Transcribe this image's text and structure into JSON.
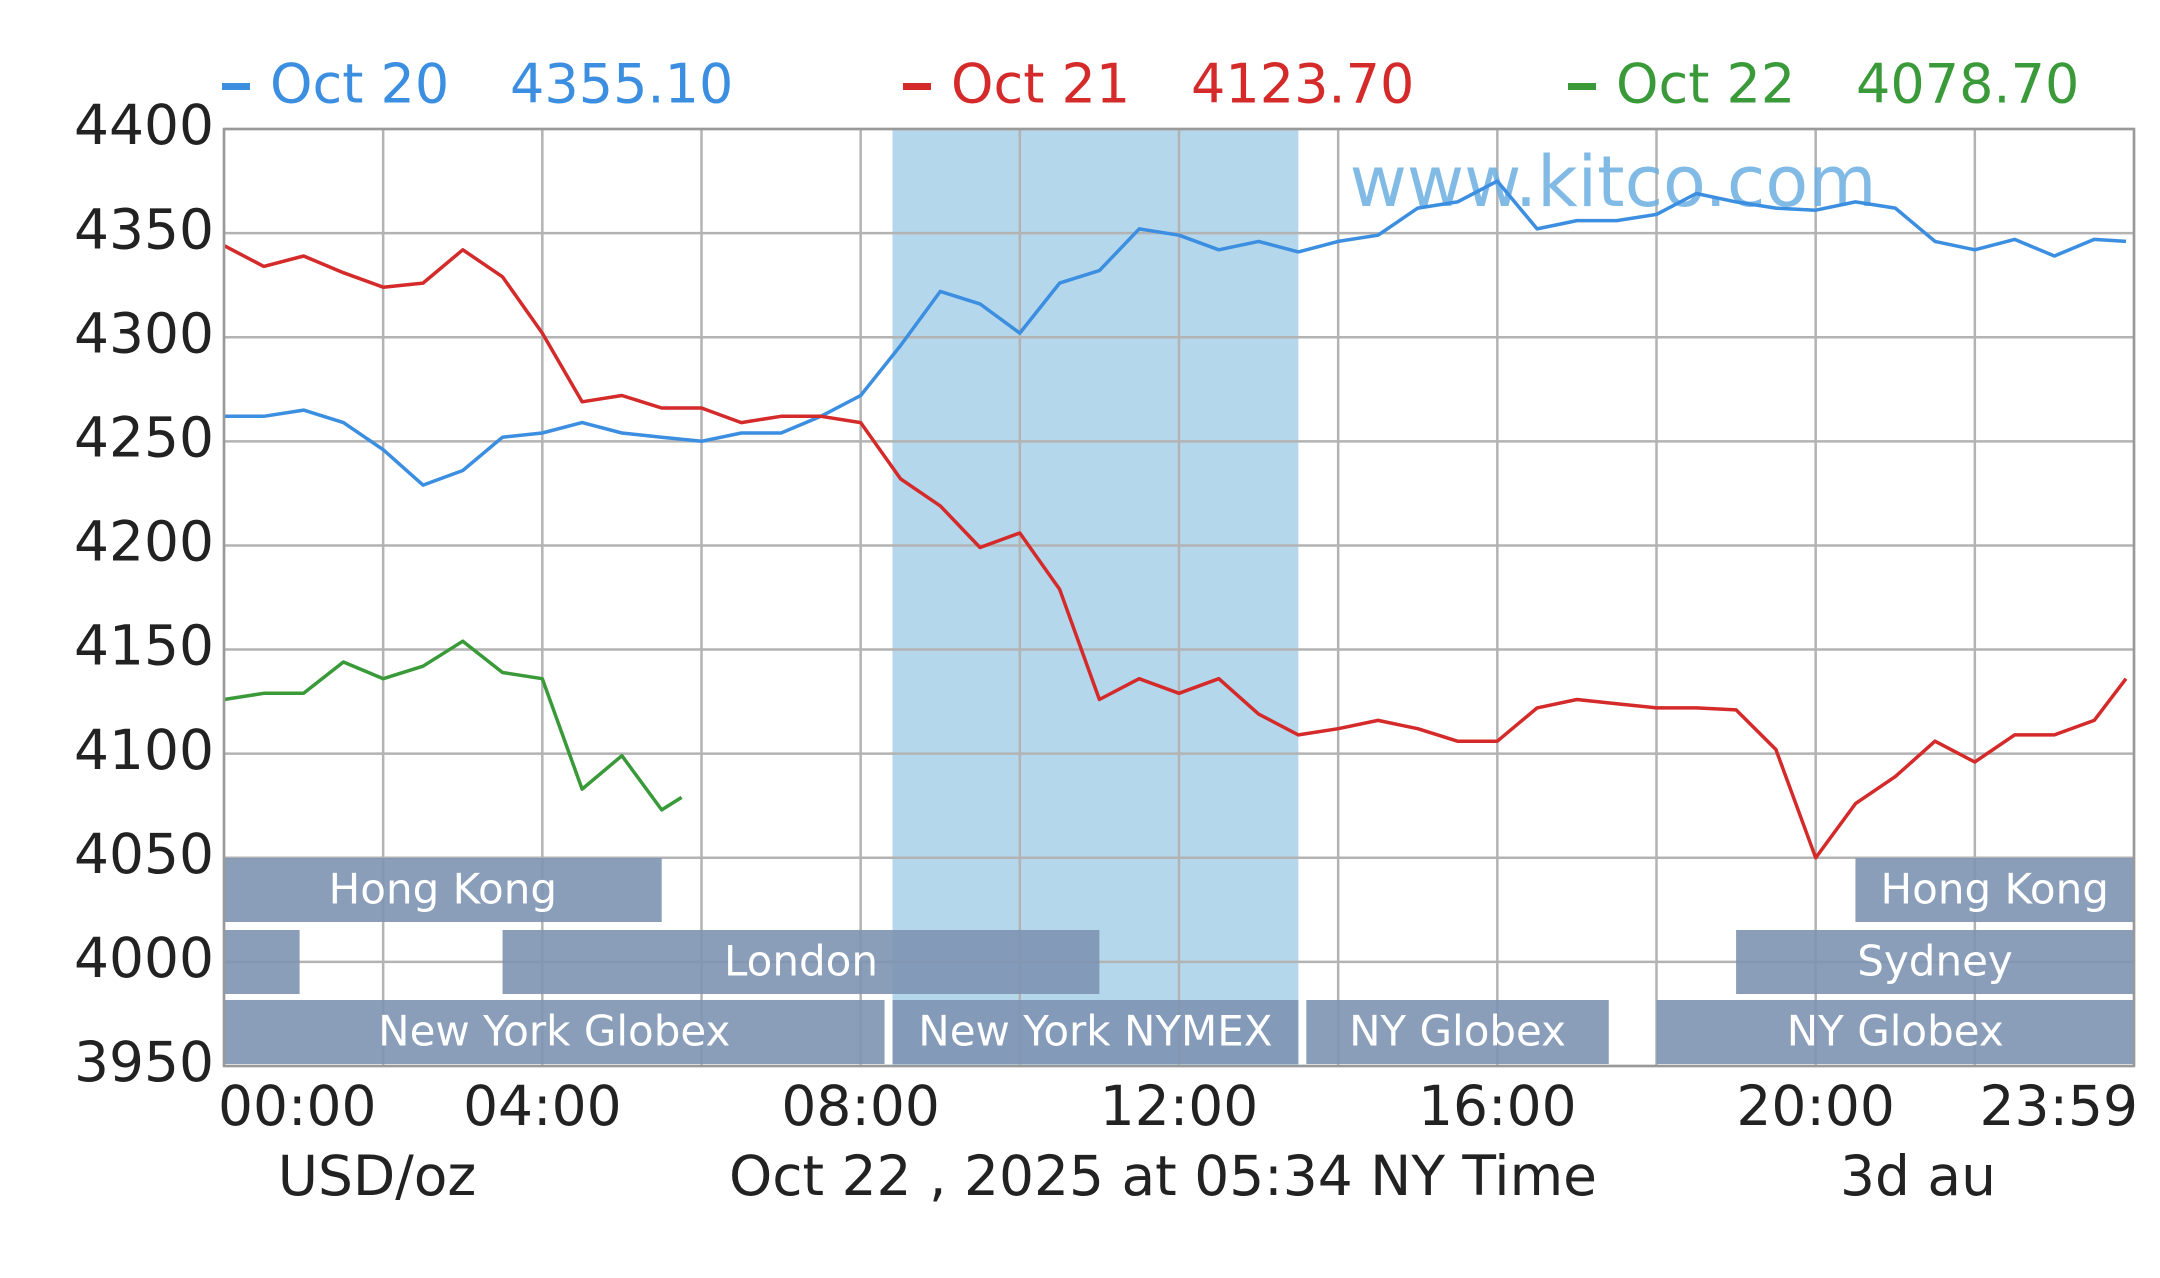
{
  "chart_data": {
    "type": "line",
    "watermark": "www.kitco.com",
    "y_unit": "USD/oz",
    "timestamp": "Oct 22 , 2025 at 05:34 NY Time",
    "footer_note": "3d au",
    "xlim": [
      0,
      24
    ],
    "xticks": [
      {
        "value": 0,
        "label": "00:00"
      },
      {
        "value": 4,
        "label": "04:00"
      },
      {
        "value": 8,
        "label": "08:00"
      },
      {
        "value": 12,
        "label": "12:00"
      },
      {
        "value": 16,
        "label": "16:00"
      },
      {
        "value": 20,
        "label": "20:00"
      },
      {
        "value": 24,
        "label": "23:59"
      }
    ],
    "xgrid_extra": [
      2,
      6,
      10,
      14,
      18,
      22
    ],
    "ylim": [
      3950,
      4400
    ],
    "yticks": [
      3950,
      4000,
      4050,
      4100,
      4150,
      4200,
      4250,
      4300,
      4350,
      4400
    ],
    "grid": true,
    "highlight": [
      8.4,
      13.5
    ],
    "sessions": [
      {
        "label": "Hong Kong",
        "row": 0,
        "start": 0,
        "end": 5.5
      },
      {
        "label": "Hong Kong",
        "row": 0,
        "start": 20.5,
        "end": 24
      },
      {
        "label": null,
        "row": 1,
        "start": 0,
        "end": 0.95
      },
      {
        "label": "London",
        "row": 1,
        "start": 3.5,
        "end": 11
      },
      {
        "label": "Sydney",
        "row": 1,
        "start": 19,
        "end": 24
      },
      {
        "label": "New York Globex",
        "row": 2,
        "start": 0,
        "end": 8.3
      },
      {
        "label": "New York NYMEX",
        "row": 2,
        "start": 8.4,
        "end": 13.5
      },
      {
        "label": "NY Globex",
        "row": 2,
        "start": 13.6,
        "end": 17.4
      },
      {
        "label": "NY Globex",
        "row": 2,
        "start": 18,
        "end": 24
      }
    ],
    "series": [
      {
        "name": "Oct 20",
        "value_label": "4355.10",
        "color": "#3b8ee0",
        "x": [
          0,
          0.5,
          1,
          1.5,
          2,
          2.5,
          3,
          3.5,
          4,
          4.5,
          5,
          5.5,
          6,
          6.5,
          7,
          7.5,
          8,
          8.5,
          9,
          9.5,
          10,
          10.5,
          11,
          11.5,
          12,
          12.5,
          13,
          13.5,
          14,
          14.5,
          15,
          15.5,
          16,
          16.5,
          17,
          17.5,
          18,
          18.5,
          19,
          19.5,
          20,
          20.5,
          21,
          21.5,
          22,
          22.5,
          23,
          23.5,
          23.9
        ],
        "values": [
          4262,
          4262,
          4265,
          4259,
          4246,
          4229,
          4236,
          4252,
          4254,
          4259,
          4254,
          4252,
          4250,
          4254,
          4254,
          4262,
          4272,
          4296,
          4322,
          4316,
          4302,
          4326,
          4332,
          4352,
          4349,
          4342,
          4346,
          4341,
          4346,
          4349,
          4362,
          4365,
          4375,
          4352,
          4356,
          4356,
          4359,
          4369,
          4365,
          4362,
          4361,
          4365,
          4362,
          4346,
          4342,
          4347,
          4339,
          4347,
          4346
        ]
      },
      {
        "name": "Oct 21",
        "value_label": "4123.70",
        "color": "#d42a2a",
        "x": [
          0,
          0.5,
          1,
          1.5,
          2,
          2.5,
          3,
          3.5,
          4,
          4.5,
          5,
          5.5,
          6,
          6.5,
          7,
          7.5,
          8,
          8.5,
          9,
          9.5,
          10,
          10.5,
          11,
          11.5,
          12,
          12.5,
          13,
          13.5,
          14,
          14.5,
          15,
          15.5,
          16,
          16.5,
          17,
          17.5,
          18,
          18.5,
          19,
          19.5,
          20,
          20.5,
          21,
          21.5,
          22,
          22.5,
          23,
          23.5,
          23.9
        ],
        "values": [
          4344,
          4334,
          4339,
          4331,
          4324,
          4326,
          4342,
          4329,
          4302,
          4269,
          4272,
          4266,
          4266,
          4259,
          4262,
          4262,
          4259,
          4232,
          4219,
          4199,
          4206,
          4179,
          4126,
          4136,
          4129,
          4136,
          4119,
          4109,
          4112,
          4116,
          4112,
          4106,
          4106,
          4122,
          4126,
          4124,
          4122,
          4122,
          4121,
          4102,
          4050,
          4076,
          4089,
          4106,
          4096,
          4109,
          4109,
          4116,
          4136
        ]
      },
      {
        "name": "Oct 22",
        "value_label": "4078.70",
        "color": "#3a9a3a",
        "x": [
          0,
          0.5,
          1,
          1.5,
          2,
          2.5,
          3,
          3.5,
          4,
          4.5,
          5,
          5.5,
          5.75
        ],
        "values": [
          4126,
          4129,
          4129,
          4144,
          4136,
          4142,
          4154,
          4139,
          4136,
          4083,
          4099,
          4073,
          4079
        ]
      }
    ]
  }
}
